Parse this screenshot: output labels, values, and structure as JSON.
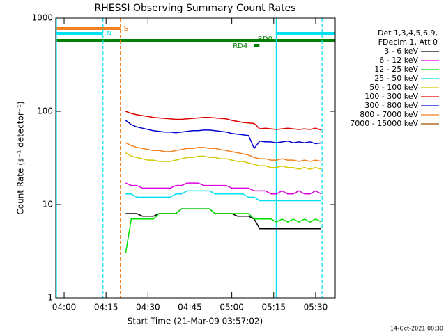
{
  "chart_data": {
    "type": "line",
    "title": "RHESSI Observing Summary Count Rates",
    "xlabel": "Start Time (21-Mar-09 03:57:02)",
    "ylabel": "Count Rate (s⁻¹ detector⁻¹)",
    "footer": "14-Oct-2021 08:30",
    "legend_title": [
      "Det 1,3,4,5,6,9,",
      "FDecim 1, Att 0"
    ],
    "log_y": true,
    "xlim": [
      237,
      337
    ],
    "ylim": [
      1,
      1000
    ],
    "xticks": [
      {
        "value": 240,
        "label": "04:00"
      },
      {
        "value": 255,
        "label": "04:15"
      },
      {
        "value": 270,
        "label": "04:30"
      },
      {
        "value": 285,
        "label": "04:45"
      },
      {
        "value": 300,
        "label": "05:00"
      },
      {
        "value": 315,
        "label": "05:15"
      },
      {
        "value": 330,
        "label": "05:30"
      }
    ],
    "yticks": [
      1,
      10,
      100,
      1000
    ],
    "x": [
      262,
      264,
      266,
      268,
      270,
      272,
      274,
      276,
      278,
      280,
      282,
      284,
      286,
      288,
      290,
      292,
      294,
      296,
      298,
      300,
      302,
      304,
      306,
      308,
      310,
      312,
      314,
      316,
      318,
      320,
      322,
      324,
      326,
      328,
      330,
      332
    ],
    "series": [
      {
        "name": "3 - 6 keV",
        "color": "#000000",
        "values": [
          8,
          8,
          8,
          7.5,
          7.5,
          7.5,
          8,
          8,
          8,
          8,
          9,
          9,
          9,
          9,
          9,
          9,
          8,
          8,
          8,
          8,
          7.5,
          7.5,
          7.5,
          7,
          5.5,
          5.5,
          5.5,
          5.5,
          5.5,
          5.5,
          5.5,
          5.5,
          5.5,
          5.5,
          5.5,
          5.5
        ]
      },
      {
        "name": "6 - 12 keV",
        "color": "#e000e0",
        "values": [
          17,
          16,
          16,
          15,
          15,
          15,
          15,
          15,
          15,
          16,
          16,
          17,
          17,
          17,
          16,
          16,
          16,
          16,
          16,
          15,
          15,
          15,
          15,
          14,
          14,
          14,
          13,
          13,
          14,
          13,
          13,
          14,
          13,
          13,
          14,
          13
        ]
      },
      {
        "name": "12 - 25 keV",
        "color": "#00e000",
        "values": [
          3,
          7,
          7,
          7,
          7,
          7,
          8,
          8,
          8,
          8,
          9,
          9,
          9,
          9,
          9,
          9,
          8,
          8,
          8,
          8,
          8,
          8,
          8,
          7,
          7,
          7,
          7,
          6.5,
          7,
          6.5,
          7,
          6.5,
          7,
          6.5,
          7,
          6.5
        ]
      },
      {
        "name": "25 - 50 keV",
        "color": "#00e0f0",
        "values": [
          13,
          13,
          12,
          12,
          12,
          12,
          12,
          12,
          12,
          13,
          13,
          14,
          14,
          14,
          14,
          14,
          13,
          13,
          13,
          13,
          13,
          13,
          12,
          12,
          11,
          11,
          11,
          11,
          11,
          11,
          11,
          11,
          11,
          11,
          11,
          11
        ]
      },
      {
        "name": "50 - 100 keV",
        "color": "#d8c800",
        "values": [
          36,
          33,
          32,
          31,
          30,
          30,
          29,
          29,
          29,
          30,
          31,
          32,
          32,
          33,
          33,
          32,
          32,
          31,
          31,
          30,
          29,
          29,
          28,
          27,
          26,
          26,
          25,
          25,
          26,
          25,
          25,
          24,
          25,
          24,
          25,
          24
        ]
      },
      {
        "name": "100 - 300 keV",
        "color": "#e00000",
        "values": [
          100,
          95,
          92,
          90,
          88,
          86,
          85,
          84,
          83,
          82,
          82,
          83,
          84,
          85,
          86,
          86,
          85,
          84,
          83,
          80,
          78,
          76,
          75,
          74,
          65,
          66,
          65,
          64,
          65,
          66,
          65,
          64,
          65,
          64,
          66,
          63
        ]
      },
      {
        "name": "300 - 800 keV",
        "color": "#0000d0",
        "values": [
          80,
          72,
          68,
          66,
          64,
          62,
          61,
          60,
          60,
          59,
          60,
          61,
          62,
          62,
          63,
          63,
          62,
          61,
          60,
          58,
          57,
          56,
          55,
          40,
          48,
          47,
          47,
          46,
          47,
          48,
          46,
          47,
          46,
          47,
          45,
          46
        ]
      },
      {
        "name": "800 - 7000 keV",
        "color": "#f08020",
        "values": [
          46,
          43,
          41,
          40,
          39,
          38,
          38,
          37,
          37,
          38,
          39,
          40,
          40,
          41,
          41,
          40,
          40,
          39,
          38,
          37,
          36,
          35,
          34,
          32,
          31,
          31,
          30,
          30,
          31,
          30,
          30,
          29,
          30,
          29,
          30,
          29
        ]
      },
      {
        "name": "7000 - 15000 keV",
        "color": "#a05000",
        "values": [
          null,
          null,
          null,
          null,
          null,
          null,
          null,
          null,
          null,
          null,
          null,
          null,
          null,
          null,
          null,
          null,
          null,
          null,
          null,
          null,
          null,
          null,
          null,
          null,
          null,
          null,
          null,
          null,
          null,
          null,
          null,
          null,
          null,
          null,
          null,
          null
        ]
      }
    ],
    "flags": [
      {
        "label": "S",
        "color": "#f08020",
        "start": 237,
        "end": 260.1
      },
      {
        "label": "N",
        "color": "#00e0f0",
        "start": 237,
        "end": 253.9
      },
      {
        "color": "#00e0f0",
        "start": 315.9,
        "end": 337
      },
      {
        "color": "#008000",
        "start": 237,
        "end": 337
      },
      {
        "color": "#008000",
        "start": 307.9,
        "end": 309.9
      }
    ],
    "annotations": [
      {
        "text": "RD0",
        "x": 309.3
      },
      {
        "text": "RD4",
        "x": 300.4
      }
    ],
    "vlines": [
      {
        "x": 237.25,
        "color": "#00e0f0",
        "style": "solid"
      },
      {
        "x": 253.9,
        "color": "#00e0f0",
        "style": "dashed"
      },
      {
        "x": 260.1,
        "color": "#f08020",
        "style": "dashed"
      },
      {
        "x": 315.9,
        "color": "#00e0f0",
        "style": "solid"
      },
      {
        "x": 332.3,
        "color": "#00e0f0",
        "style": "dashed"
      }
    ]
  }
}
